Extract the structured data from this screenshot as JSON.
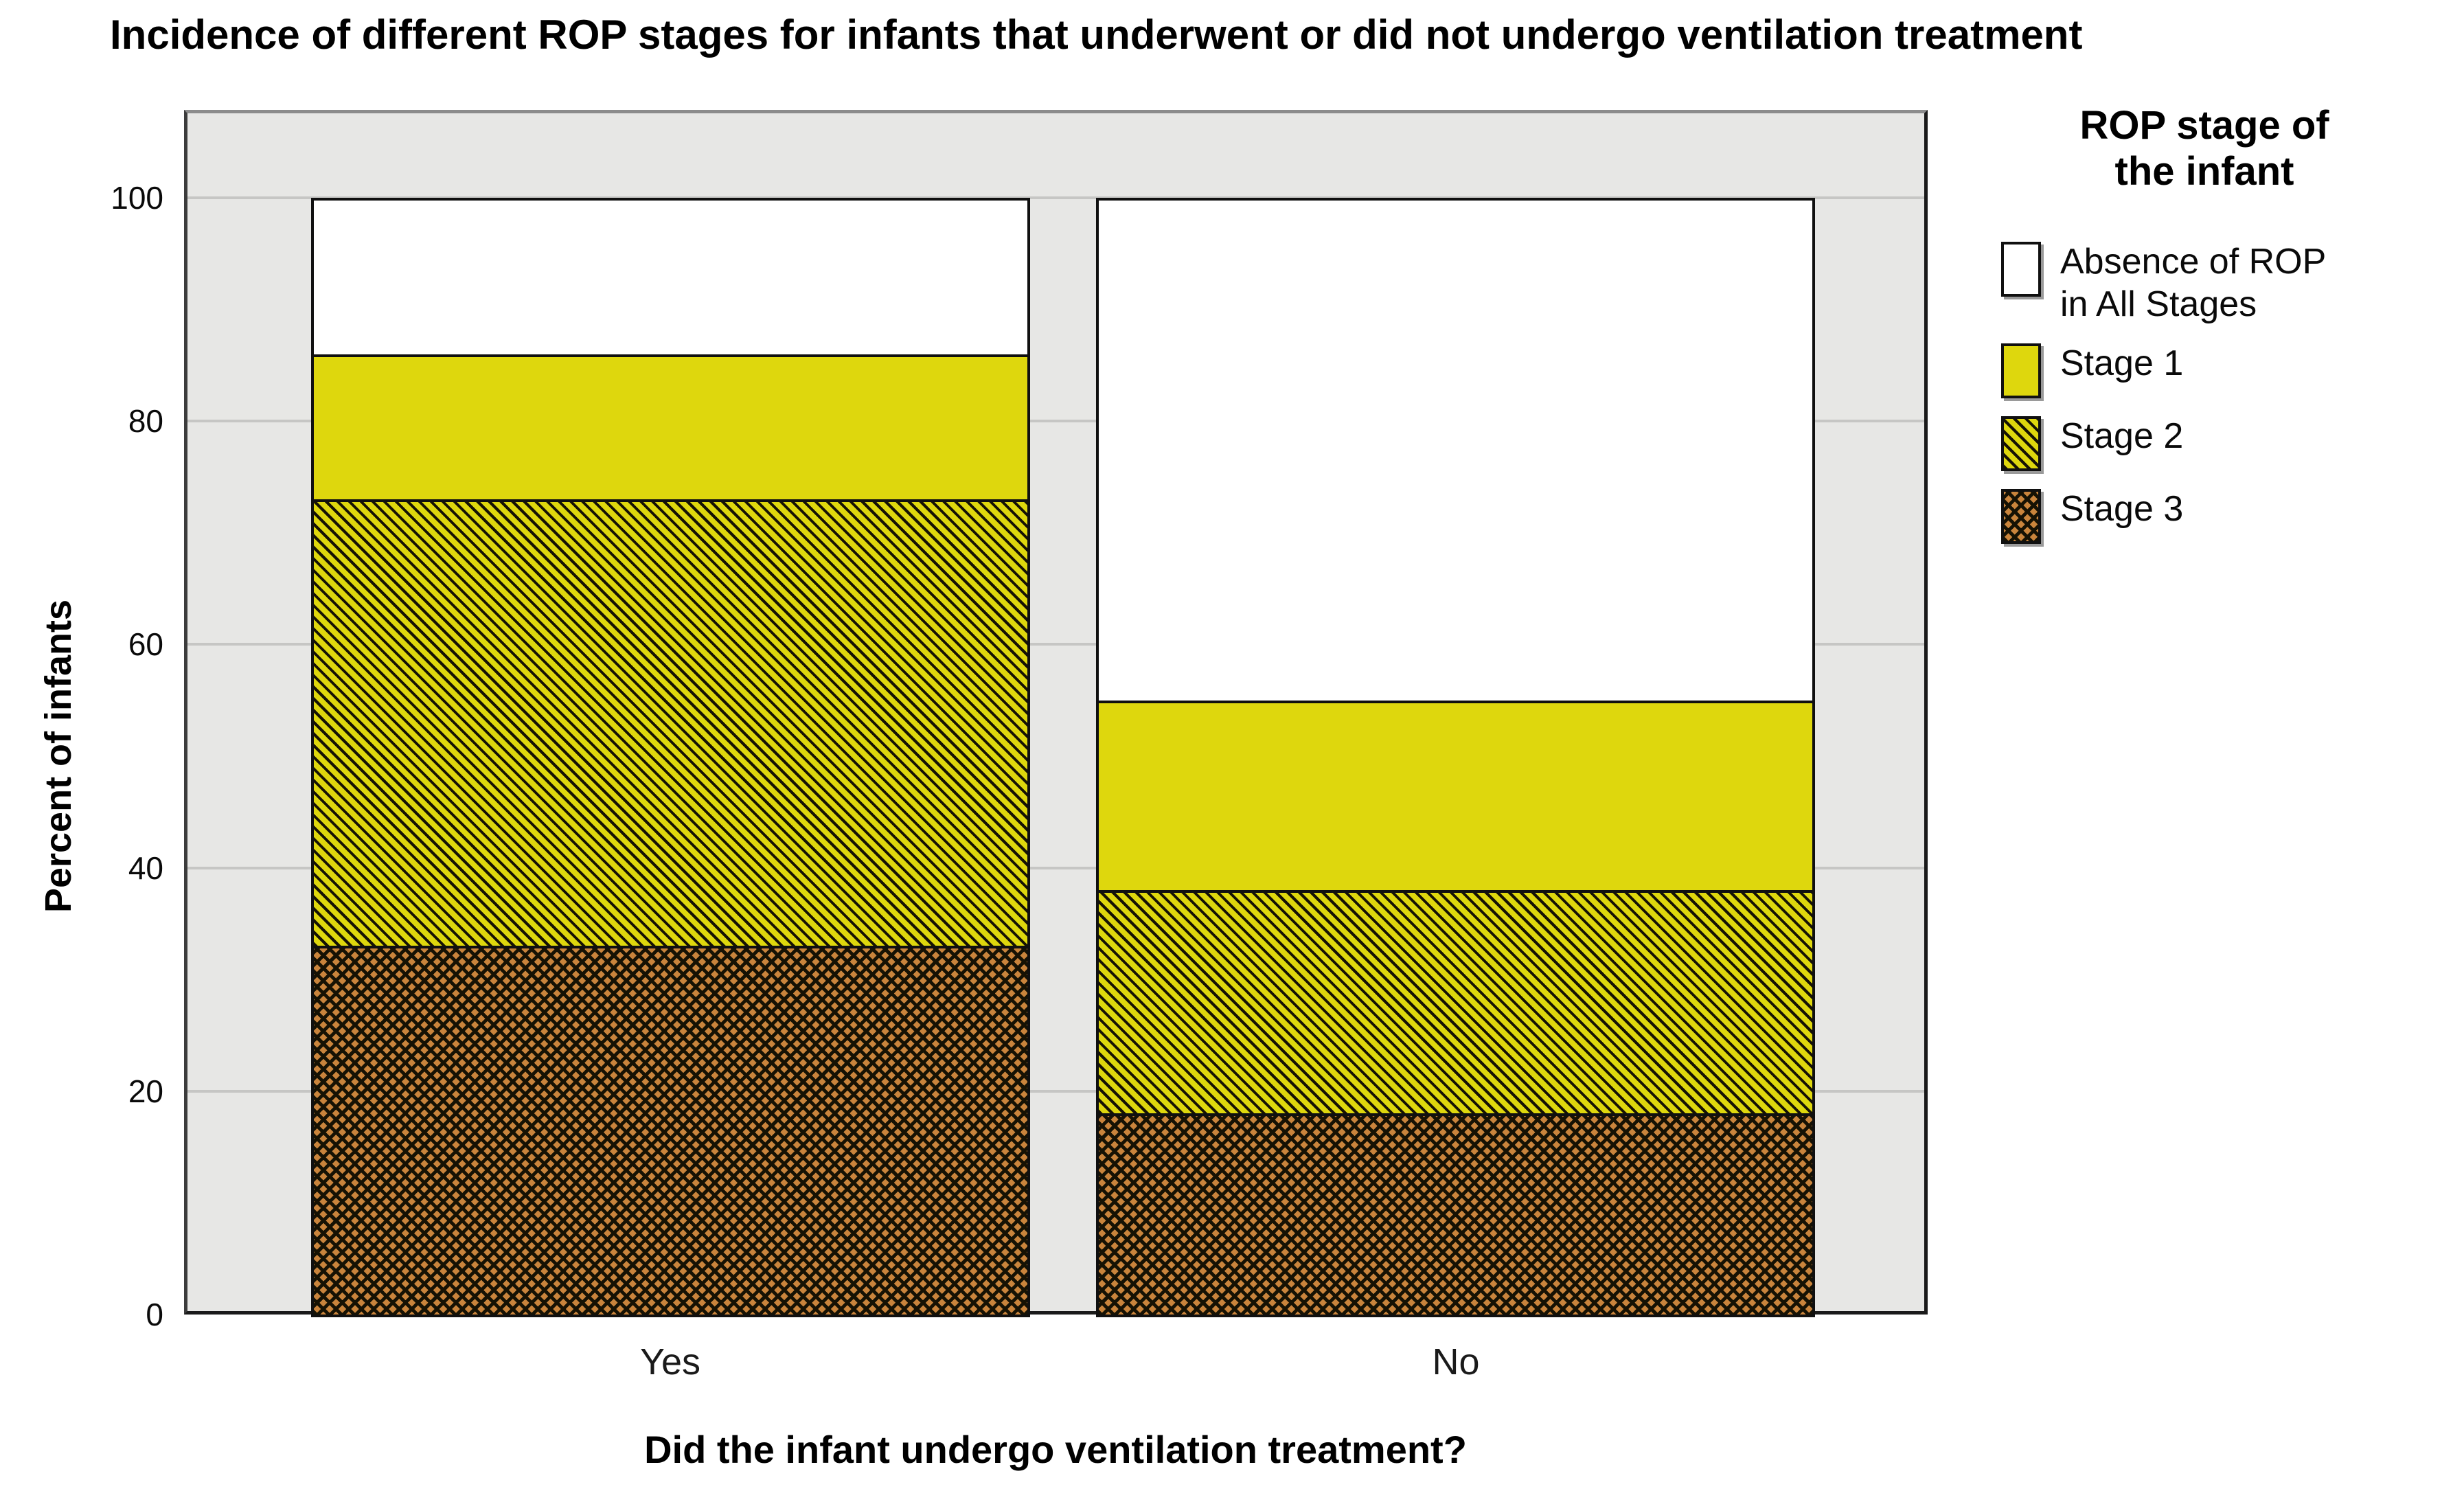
{
  "title": "Incidence of different ROP stages for infants that underwent or did not undergo ventilation treatment",
  "y_axis": {
    "title": "Percent of infants",
    "tick_labels": [
      "0",
      "20",
      "40",
      "60",
      "80",
      "100"
    ]
  },
  "x_axis": {
    "title": "Did the infant undergo ventilation treatment?",
    "categories": [
      "Yes",
      "No"
    ]
  },
  "legend": {
    "title": "ROP stage of\nthe infant",
    "items": [
      {
        "label": "Absence of ROP\nin All Stages",
        "pattern": "plain-white"
      },
      {
        "label": "Stage 1",
        "pattern": "solid-yellow"
      },
      {
        "label": "Stage 2",
        "pattern": "diagonal-hatch-yellow"
      },
      {
        "label": "Stage 3",
        "pattern": "crosshatch-orange"
      }
    ]
  },
  "chart_data": {
    "type": "bar",
    "stacked": true,
    "title": "Incidence of different ROP stages for infants that underwent or did not undergo ventilation treatment",
    "categories": [
      "Yes",
      "No"
    ],
    "series": [
      {
        "name": "Absence of ROP in All Stages",
        "pattern": "plain-white",
        "values": [
          14,
          45
        ]
      },
      {
        "name": "Stage 1",
        "pattern": "solid-yellow",
        "values": [
          13,
          17
        ]
      },
      {
        "name": "Stage 2",
        "pattern": "diagonal-hatch-yellow",
        "values": [
          40,
          20
        ]
      },
      {
        "name": "Stage 3",
        "pattern": "crosshatch-orange",
        "values": [
          33,
          18
        ]
      }
    ],
    "xlabel": "Did the infant undergo ventilation treatment?",
    "ylabel": "Percent of infants",
    "ylim": [
      0,
      100
    ],
    "yticks": [
      0,
      20,
      40,
      60,
      80,
      100
    ],
    "grid": "horizontal",
    "legend_position": "right"
  },
  "colors": {
    "stage_yellow": "#ded70d",
    "stage_orange": "#c9843c",
    "pattern_ink": "#161204",
    "plot_background": "#e7e7e5",
    "gridline": "#c6c6c4",
    "absence_white": "#ffffff"
  }
}
